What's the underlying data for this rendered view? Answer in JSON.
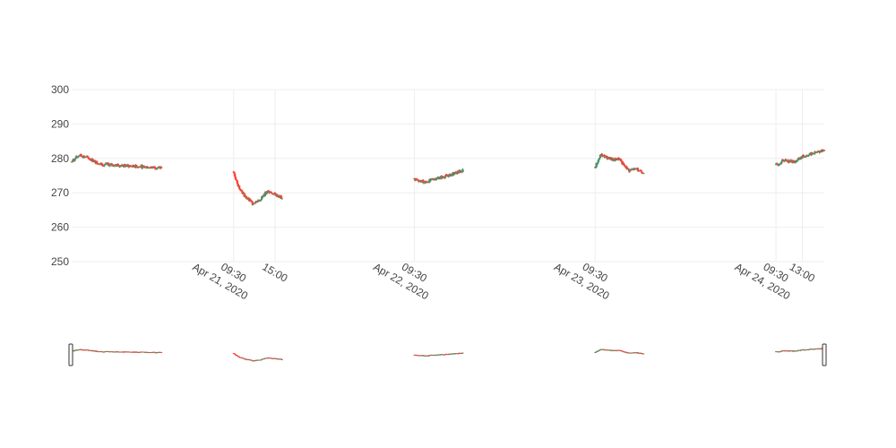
{
  "chart_data": {
    "type": "candlestick",
    "title": "",
    "xlabel": "",
    "ylabel": "",
    "ylim": [
      250,
      300
    ],
    "y_ticks": [
      250,
      260,
      270,
      280,
      290,
      300
    ],
    "x_ticks": [
      {
        "time": "2020-04-21 09:30",
        "label": [
          "09:30",
          "Apr 21, 2020"
        ]
      },
      {
        "time": "2020-04-21 15:00",
        "label": [
          "15:00"
        ]
      },
      {
        "time": "2020-04-22 09:30",
        "label": [
          "09:30",
          "Apr 22, 2020"
        ]
      },
      {
        "time": "2020-04-23 09:30",
        "label": [
          "09:30",
          "Apr 23, 2020"
        ]
      },
      {
        "time": "2020-04-24 09:30",
        "label": [
          "09:30",
          "Apr 24, 2020"
        ]
      },
      {
        "time": "2020-04-24 13:00",
        "label": [
          "13:00"
        ]
      }
    ],
    "x_range": [
      "2020-04-20 12:00",
      "2020-04-24 15:55"
    ],
    "colors": {
      "increasing": "#3d9970",
      "decreasing": "#ff4136"
    },
    "price_path": [
      {
        "time": "2020-04-20 12:00",
        "price": 279.0
      },
      {
        "time": "2020-04-20 13:00",
        "price": 281.0
      },
      {
        "time": "2020-04-20 14:00",
        "price": 280.3
      },
      {
        "time": "2020-04-20 15:00",
        "price": 279.2
      },
      {
        "time": "2020-04-20 15:55",
        "price": 278.3
      },
      {
        "time": "2020-04-21 09:30",
        "price": 276.0
      },
      {
        "time": "2020-04-21 10:00",
        "price": 272.5
      },
      {
        "time": "2020-04-21 11:00",
        "price": 269.0
      },
      {
        "time": "2020-04-21 12:00",
        "price": 267.0
      },
      {
        "time": "2020-04-21 13:00",
        "price": 268.0
      },
      {
        "time": "2020-04-21 14:00",
        "price": 270.5
      },
      {
        "time": "2020-04-21 15:00",
        "price": 269.5
      },
      {
        "time": "2020-04-21 15:55",
        "price": 268.5
      },
      {
        "time": "2020-04-22 09:30",
        "price": 274.0
      },
      {
        "time": "2020-04-22 11:00",
        "price": 273.0
      },
      {
        "time": "2020-04-22 12:00",
        "price": 274.0
      },
      {
        "time": "2020-04-22 14:00",
        "price": 275.0
      },
      {
        "time": "2020-04-22 15:55",
        "price": 276.5
      },
      {
        "time": "2020-04-23 09:30",
        "price": 277.5
      },
      {
        "time": "2020-04-23 10:15",
        "price": 281.0
      },
      {
        "time": "2020-04-23 12:00",
        "price": 279.5
      },
      {
        "time": "2020-04-23 12:45",
        "price": 280.0
      },
      {
        "time": "2020-04-23 13:15",
        "price": 278.0
      },
      {
        "time": "2020-04-23 14:00",
        "price": 276.5
      },
      {
        "time": "2020-04-23 15:00",
        "price": 277.0
      },
      {
        "time": "2020-04-23 15:55",
        "price": 276.0
      },
      {
        "time": "2020-04-24 09:30",
        "price": 278.0
      },
      {
        "time": "2020-04-24 10:30",
        "price": 279.5
      },
      {
        "time": "2020-04-24 12:00",
        "price": 279.0
      },
      {
        "time": "2020-04-24 13:00",
        "price": 280.5
      },
      {
        "time": "2020-04-24 14:30",
        "price": 281.5
      },
      {
        "time": "2020-04-24 15:55",
        "price": 282.5
      }
    ]
  }
}
